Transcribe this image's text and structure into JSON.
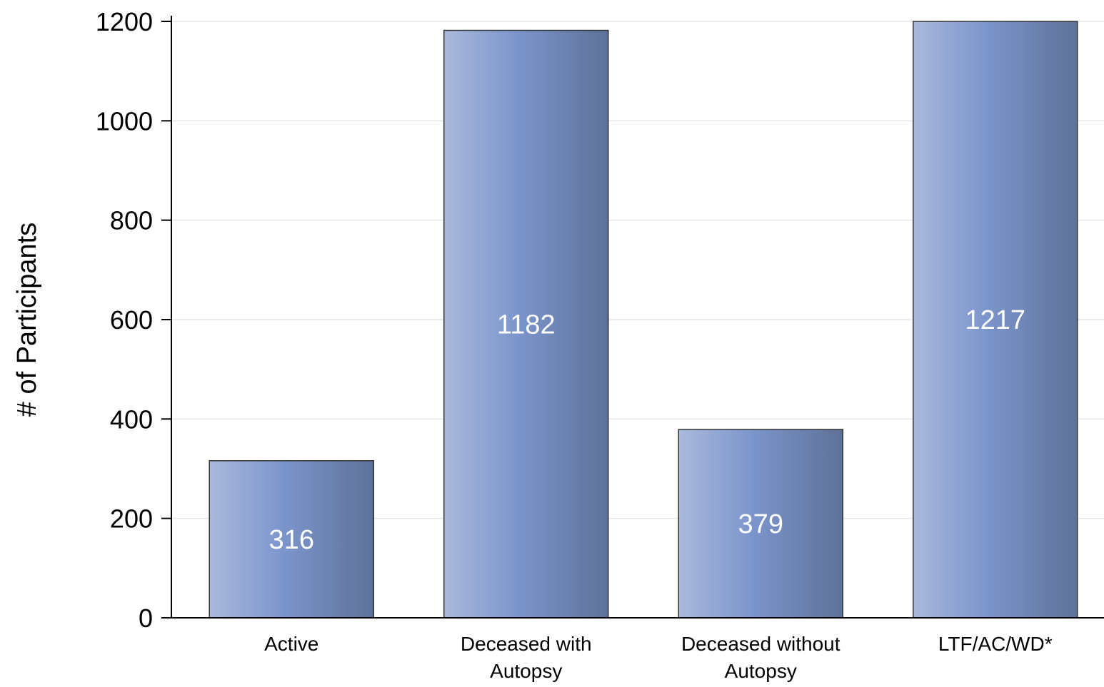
{
  "chart_data": {
    "type": "bar",
    "title": "",
    "xlabel": "",
    "ylabel": "# of Participants",
    "ylim": [
      0,
      1200
    ],
    "yticks": [
      "0",
      "200",
      "400",
      "600",
      "800",
      "1000",
      "1200"
    ],
    "grid": true,
    "categories": [
      [
        "Active"
      ],
      [
        "Deceased with",
        "Autopsy"
      ],
      [
        "Deceased without",
        "Autopsy"
      ],
      [
        "LTF/AC/WD*"
      ]
    ],
    "values": [
      316,
      1182,
      379,
      1217
    ],
    "data_labels": [
      "316",
      "1182",
      "379",
      "1217"
    ],
    "colors": {
      "bar_light": "#aab9dc",
      "bar_mid": "#7b95cc",
      "bar_dark": "#5e7198",
      "bar_border": "#333333",
      "label": "#ffffff",
      "axis": "#000000",
      "grid": "#e6e6e6"
    }
  }
}
